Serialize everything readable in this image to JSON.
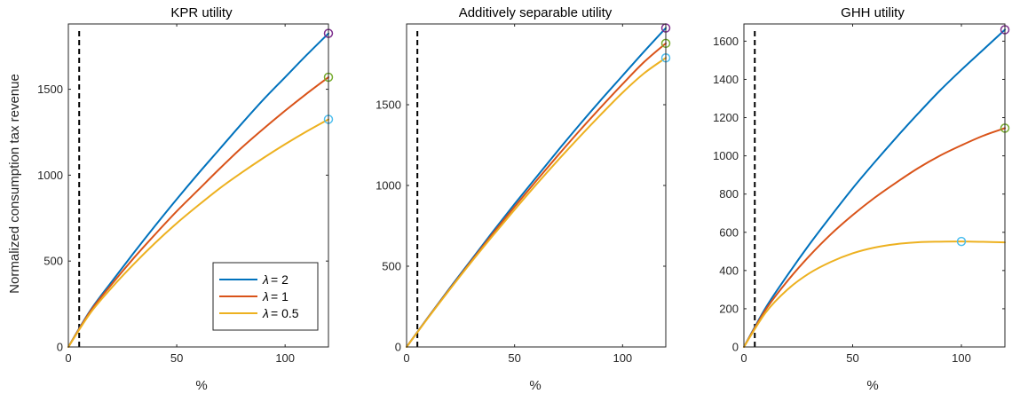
{
  "colors": {
    "axis": "#262626",
    "refline": "#000000",
    "series": [
      "#0072BD",
      "#D95319",
      "#EDB120"
    ],
    "markers": [
      "#7E2F8E",
      "#77AC30",
      "#4DBEEE"
    ]
  },
  "legend": {
    "placement": "bottom-right of first panel",
    "prefix": "λ",
    "entries": [
      " = 2",
      " = 1",
      " = 0.5"
    ]
  },
  "chart_data": [
    {
      "type": "line",
      "title": "KPR utility",
      "xlabel": "%",
      "ylabel": "Normalized consumption tax revenue",
      "xlim": [
        0,
        120
      ],
      "ylim": [
        0,
        1880
      ],
      "xticks": [
        "0",
        "50",
        "100"
      ],
      "yticks": [
        "0",
        "500",
        "1000",
        "1500"
      ],
      "vline_x": 5,
      "x": [
        0,
        10,
        20,
        30,
        40,
        50,
        60,
        70,
        80,
        90,
        100,
        110,
        120
      ],
      "series": [
        {
          "name": "λ = 2",
          "values": [
            0,
            210,
            380,
            545,
            705,
            860,
            1010,
            1155,
            1300,
            1440,
            1570,
            1700,
            1825
          ]
        },
        {
          "name": "λ = 1",
          "values": [
            0,
            205,
            365,
            515,
            655,
            790,
            915,
            1040,
            1160,
            1270,
            1375,
            1475,
            1570
          ]
        },
        {
          "name": "λ = 0.5",
          "values": [
            0,
            195,
            345,
            480,
            605,
            720,
            825,
            925,
            1015,
            1100,
            1180,
            1255,
            1325
          ]
        }
      ],
      "markers": [
        {
          "x": 120,
          "y": 1825
        },
        {
          "x": 120,
          "y": 1570
        },
        {
          "x": 120,
          "y": 1325
        }
      ]
    },
    {
      "type": "line",
      "title": "Additively separable utility",
      "xlabel": "%",
      "ylabel": "",
      "xlim": [
        0,
        120
      ],
      "ylim": [
        0,
        2000
      ],
      "xticks": [
        "0",
        "50",
        "100"
      ],
      "yticks": [
        "0",
        "500",
        "1000",
        "1500"
      ],
      "vline_x": 5,
      "x": [
        0,
        10,
        20,
        30,
        40,
        50,
        60,
        70,
        80,
        90,
        100,
        110,
        120
      ],
      "series": [
        {
          "name": "λ = 2",
          "values": [
            0,
            185,
            365,
            540,
            715,
            885,
            1050,
            1215,
            1375,
            1530,
            1680,
            1830,
            1975
          ]
        },
        {
          "name": "λ = 1",
          "values": [
            0,
            183,
            360,
            533,
            703,
            868,
            1028,
            1185,
            1338,
            1485,
            1628,
            1765,
            1880
          ]
        },
        {
          "name": "λ = 0.5",
          "values": [
            0,
            181,
            356,
            526,
            690,
            850,
            1005,
            1155,
            1300,
            1440,
            1575,
            1695,
            1790
          ]
        }
      ],
      "markers": [
        {
          "x": 120,
          "y": 1975
        },
        {
          "x": 120,
          "y": 1880
        },
        {
          "x": 120,
          "y": 1790
        }
      ]
    },
    {
      "type": "line",
      "title": "GHH utility",
      "xlabel": "%",
      "ylabel": "",
      "xlim": [
        0,
        120
      ],
      "ylim": [
        0,
        1690
      ],
      "xticks": [
        "0",
        "50",
        "100"
      ],
      "yticks": [
        "0",
        "200",
        "400",
        "600",
        "800",
        "1000",
        "1200",
        "1400",
        "1600"
      ],
      "vline_x": 5,
      "x": [
        0,
        10,
        20,
        30,
        40,
        50,
        60,
        70,
        80,
        90,
        100,
        110,
        120
      ],
      "series": [
        {
          "name": "λ = 2",
          "values": [
            0,
            205,
            375,
            535,
            685,
            830,
            965,
            1095,
            1220,
            1340,
            1450,
            1555,
            1660
          ]
        },
        {
          "name": "λ = 1",
          "values": [
            0,
            195,
            345,
            475,
            590,
            690,
            780,
            860,
            935,
            1000,
            1055,
            1105,
            1145
          ]
        },
        {
          "name": "λ = 0.5",
          "values": [
            0,
            180,
            300,
            385,
            445,
            490,
            520,
            538,
            548,
            551,
            552,
            550,
            547
          ]
        }
      ],
      "markers": [
        {
          "x": 120,
          "y": 1660
        },
        {
          "x": 120,
          "y": 1145
        },
        {
          "x": 100,
          "y": 552
        }
      ]
    }
  ]
}
